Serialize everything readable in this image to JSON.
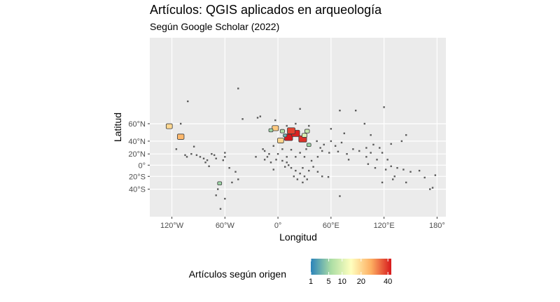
{
  "chart_data": {
    "type": "choropleth-map",
    "title": "Artículos: QGIS aplicados en arqueología",
    "subtitle": "Según Google Scholar (2022)",
    "xlabel": "Longitud",
    "ylabel": "Latitud",
    "xlim": [
      -145,
      190
    ],
    "ylim": [
      -68,
      88
    ],
    "x_ticks": [
      {
        "value": -120,
        "label": "120°W"
      },
      {
        "value": -60,
        "label": "60°W"
      },
      {
        "value": 0,
        "label": "0°"
      },
      {
        "value": 60,
        "label": "60°E"
      },
      {
        "value": 120,
        "label": "120°E"
      },
      {
        "value": 180,
        "label": "180°"
      }
    ],
    "y_ticks": [
      {
        "value": 60,
        "label": "60°N"
      },
      {
        "value": 40,
        "label": "40°N"
      },
      {
        "value": 20,
        "label": "20°N"
      },
      {
        "value": 0,
        "label": "0°"
      },
      {
        "value": -20,
        "label": "20°S"
      },
      {
        "value": -40,
        "label": "40°S"
      }
    ],
    "grid": true,
    "panel_background": "#ebebeb",
    "no_data_color": "#595959",
    "legend": {
      "title": "Artículos según origen",
      "position": "bottom",
      "min": 1,
      "max": 43,
      "ticks": [
        {
          "value": 1,
          "label": "1"
        },
        {
          "value": 5,
          "label": "5"
        },
        {
          "value": 10,
          "label": "10"
        },
        {
          "value": 20,
          "label": "20"
        },
        {
          "value": 40,
          "label": "40"
        }
      ],
      "palette": [
        "#2b83ba",
        "#abdda4",
        "#ffffbf",
        "#fdae61",
        "#d7191c"
      ],
      "scale": "sqrt"
    },
    "regions": [
      {
        "lon": 12,
        "lat": 44,
        "value": 43
      },
      {
        "lon": 20,
        "lat": 49,
        "value": 42
      },
      {
        "lon": 28,
        "lat": 42,
        "value": 40
      },
      {
        "lon": 15,
        "lat": 52,
        "value": 38
      },
      {
        "lon": 3,
        "lat": 40,
        "value": 20
      },
      {
        "lon": -3,
        "lat": 55,
        "value": 22
      },
      {
        "lon": -123,
        "lat": 57,
        "value": 20
      },
      {
        "lon": -110,
        "lat": 45,
        "value": 25
      },
      {
        "lon": 30,
        "lat": 47,
        "value": 10
      },
      {
        "lon": 33,
        "lat": 52,
        "value": 8
      },
      {
        "lon": -8,
        "lat": 53,
        "value": 5
      },
      {
        "lon": 35,
        "lat": 34,
        "value": 5
      },
      {
        "lon": -66,
        "lat": -32,
        "value": 5
      },
      {
        "lon": 8,
        "lat": 47,
        "value": 3
      },
      {
        "lon": 5,
        "lat": 52,
        "value": 6
      }
    ]
  }
}
